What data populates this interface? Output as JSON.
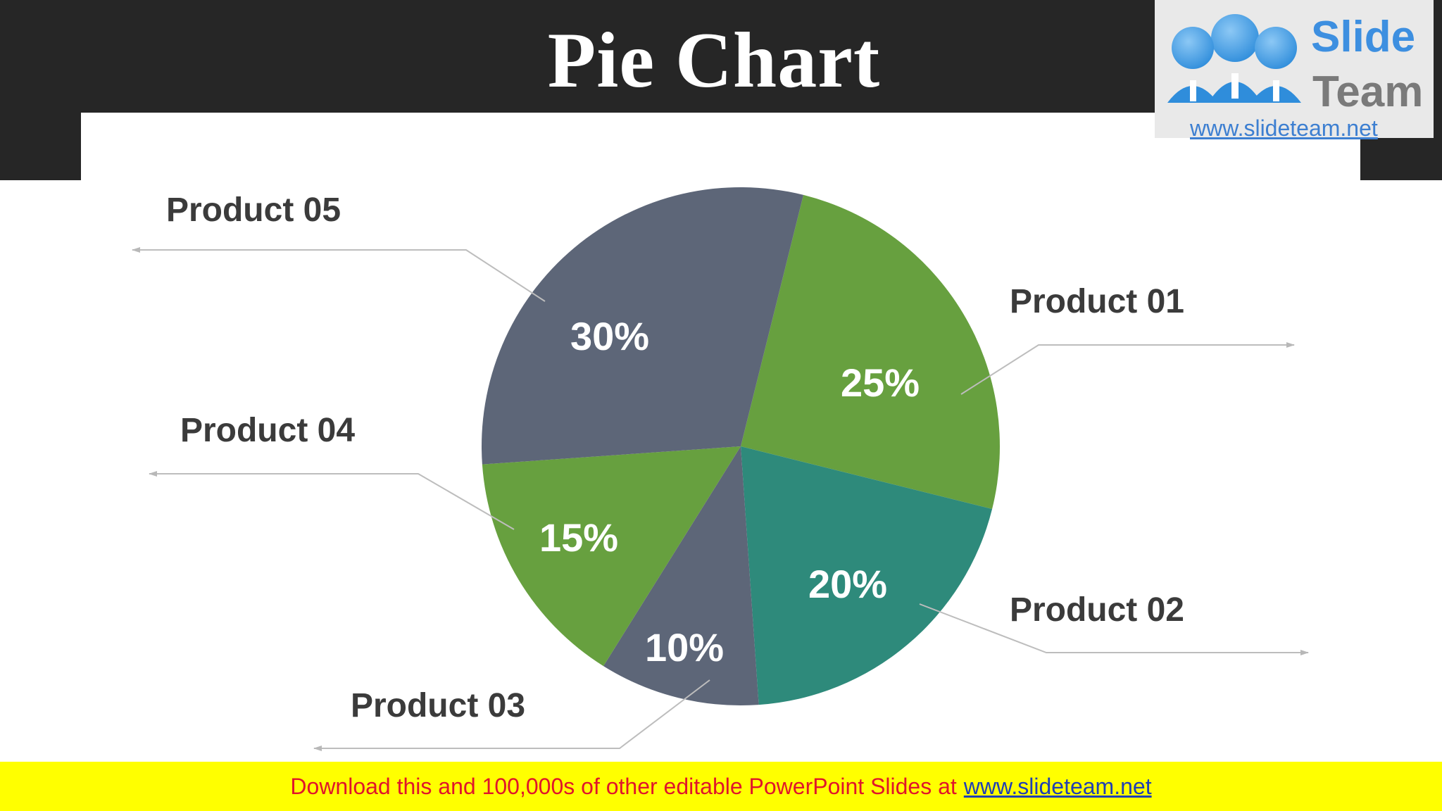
{
  "slide": {
    "title": "Pie Chart"
  },
  "logo": {
    "word1": "Slide",
    "word2": "Team",
    "url": "www.slideteam.net"
  },
  "footer": {
    "text": "Download this and 100,000s of other editable PowerPoint Slides at",
    "link": "www.slideteam.net"
  },
  "colors": {
    "header": "#262626",
    "green": "#67a03f",
    "teal": "#2e8a7b",
    "slate": "#5d6678",
    "label_text": "#3b3b3b",
    "footer_bg": "#ffff00",
    "footer_text": "#e0152b",
    "footer_link": "#1f3fb5"
  },
  "chart_data": {
    "type": "pie",
    "categories": [
      "Product 01",
      "Product 02",
      "Product 03",
      "Product 04",
      "Product 05"
    ],
    "values": [
      25,
      20,
      10,
      15,
      30
    ],
    "value_labels": [
      "25%",
      "20%",
      "10%",
      "15%",
      "30%"
    ],
    "colors": [
      "#67a03f",
      "#2e8a7b",
      "#5d6678",
      "#67a03f",
      "#5d6678"
    ],
    "start_angle_deg": 14
  }
}
